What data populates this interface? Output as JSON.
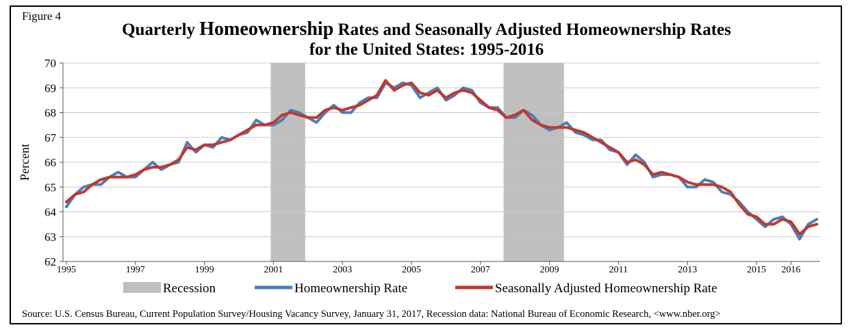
{
  "figure_label": "Figure 4",
  "title": {
    "line1_a": "Quarterly ",
    "line1_b": "Homeownership",
    "line1_c": " Rates and Seasonally Adjusted Homeownership Rates",
    "line2": "for the United States: 1995-2016"
  },
  "source": "Source: U.S. Census Bureau, Current Population Survey/Housing Vacancy Survey, January 31, 2017, Recession data: National Bureau of Economic Research, <www.nber.org>",
  "colors": {
    "homeownership": "#4a7ebb",
    "seasonal": "#c0392b",
    "recession": "#bfbfbf",
    "grid": "#c8c8c8"
  },
  "chart_data": {
    "type": "line",
    "title": "Quarterly Homeownership Rates and Seasonally Adjusted Homeownership Rates for the United States: 1995-2016",
    "xlabel": "",
    "ylabel": "Percent",
    "ylim": [
      62,
      70
    ],
    "yticks": [
      62,
      63,
      64,
      65,
      66,
      67,
      68,
      69,
      70
    ],
    "xticks": [
      "1995",
      "1997",
      "1999",
      "2001",
      "2003",
      "2005",
      "2007",
      "2009",
      "2011",
      "2013",
      "2015",
      "2016"
    ],
    "grid": true,
    "legend": "bottom",
    "recessions": [
      {
        "name": "Recession",
        "start": "2001 Q1",
        "end": "2001 Q4"
      },
      {
        "name": "Recession",
        "start": "2007 Q4",
        "end": "2009 Q2"
      }
    ],
    "x": [
      "1995 Q1",
      "1995 Q2",
      "1995 Q3",
      "1995 Q4",
      "1996 Q1",
      "1996 Q2",
      "1996 Q3",
      "1996 Q4",
      "1997 Q1",
      "1997 Q2",
      "1997 Q3",
      "1997 Q4",
      "1998 Q1",
      "1998 Q2",
      "1998 Q3",
      "1998 Q4",
      "1999 Q1",
      "1999 Q2",
      "1999 Q3",
      "1999 Q4",
      "2000 Q1",
      "2000 Q2",
      "2000 Q3",
      "2000 Q4",
      "2001 Q1",
      "2001 Q2",
      "2001 Q3",
      "2001 Q4",
      "2002 Q1",
      "2002 Q2",
      "2002 Q3",
      "2002 Q4",
      "2003 Q1",
      "2003 Q2",
      "2003 Q3",
      "2003 Q4",
      "2004 Q1",
      "2004 Q2",
      "2004 Q3",
      "2004 Q4",
      "2005 Q1",
      "2005 Q2",
      "2005 Q3",
      "2005 Q4",
      "2006 Q1",
      "2006 Q2",
      "2006 Q3",
      "2006 Q4",
      "2007 Q1",
      "2007 Q2",
      "2007 Q3",
      "2007 Q4",
      "2008 Q1",
      "2008 Q2",
      "2008 Q3",
      "2008 Q4",
      "2009 Q1",
      "2009 Q2",
      "2009 Q3",
      "2009 Q4",
      "2010 Q1",
      "2010 Q2",
      "2010 Q3",
      "2010 Q4",
      "2011 Q1",
      "2011 Q2",
      "2011 Q3",
      "2011 Q4",
      "2012 Q1",
      "2012 Q2",
      "2012 Q3",
      "2012 Q4",
      "2013 Q1",
      "2013 Q2",
      "2013 Q3",
      "2013 Q4",
      "2014 Q1",
      "2014 Q2",
      "2014 Q3",
      "2014 Q4",
      "2015 Q1",
      "2015 Q2",
      "2015 Q3",
      "2015 Q4",
      "2016 Q1",
      "2016 Q2",
      "2016 Q3",
      "2016 Q4"
    ],
    "series": [
      {
        "name": "Homeownership Rate",
        "values": [
          64.2,
          64.7,
          65.0,
          65.1,
          65.1,
          65.4,
          65.6,
          65.4,
          65.4,
          65.7,
          66.0,
          65.7,
          65.9,
          66.0,
          66.8,
          66.4,
          66.7,
          66.6,
          67.0,
          66.9,
          67.1,
          67.2,
          67.7,
          67.5,
          67.5,
          67.7,
          68.1,
          68.0,
          67.8,
          67.6,
          68.0,
          68.3,
          68.0,
          68.0,
          68.4,
          68.6,
          68.6,
          69.2,
          69.0,
          69.2,
          69.1,
          68.6,
          68.8,
          69.0,
          68.5,
          68.7,
          69.0,
          68.9,
          68.4,
          68.2,
          68.2,
          67.8,
          67.8,
          68.1,
          67.9,
          67.5,
          67.3,
          67.4,
          67.6,
          67.2,
          67.1,
          66.9,
          66.9,
          66.5,
          66.4,
          65.9,
          66.3,
          66.0,
          65.4,
          65.5,
          65.5,
          65.4,
          65.0,
          65.0,
          65.3,
          65.2,
          64.8,
          64.7,
          64.4,
          64.0,
          63.7,
          63.4,
          63.7,
          63.8,
          63.5,
          62.9,
          63.5,
          63.7
        ]
      },
      {
        "name": "Seasonally Adjusted Homeownership Rate",
        "values": [
          64.4,
          64.7,
          64.8,
          65.1,
          65.3,
          65.4,
          65.4,
          65.4,
          65.5,
          65.7,
          65.8,
          65.8,
          65.9,
          66.1,
          66.6,
          66.5,
          66.7,
          66.7,
          66.8,
          66.9,
          67.1,
          67.3,
          67.5,
          67.5,
          67.6,
          67.9,
          68.0,
          67.9,
          67.8,
          67.8,
          68.1,
          68.2,
          68.1,
          68.2,
          68.3,
          68.5,
          68.7,
          69.3,
          68.9,
          69.1,
          69.2,
          68.8,
          68.7,
          68.9,
          68.6,
          68.8,
          68.9,
          68.8,
          68.5,
          68.2,
          68.1,
          67.8,
          67.9,
          68.1,
          67.7,
          67.5,
          67.4,
          67.4,
          67.4,
          67.3,
          67.2,
          67.0,
          66.8,
          66.6,
          66.4,
          66.0,
          66.1,
          65.9,
          65.5,
          65.6,
          65.5,
          65.4,
          65.2,
          65.1,
          65.1,
          65.1,
          65.0,
          64.8,
          64.3,
          63.9,
          63.8,
          63.5,
          63.5,
          63.7,
          63.6,
          63.1,
          63.4,
          63.5
        ]
      }
    ]
  }
}
